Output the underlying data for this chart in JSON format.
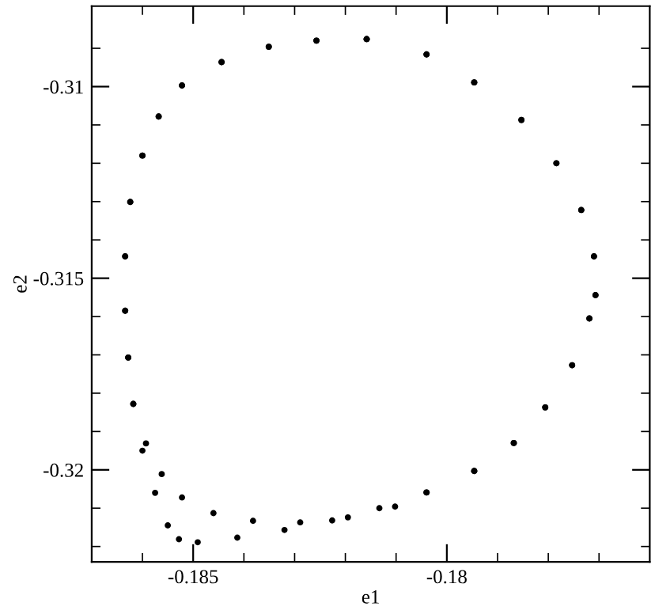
{
  "chart_data": {
    "type": "scatter",
    "xlabel": "e1",
    "ylabel": "e2",
    "xlim": [
      -0.187,
      -0.176
    ],
    "ylim": [
      -0.3224,
      -0.3079
    ],
    "xticks": [
      {
        "value": -0.186,
        "label": null
      },
      -0.185,
      {
        "value": -0.184,
        "label": null
      },
      {
        "value": -0.183,
        "label": null
      },
      {
        "value": -0.182,
        "label": null
      },
      {
        "value": -0.181,
        "label": null
      },
      -0.18,
      {
        "value": -0.179,
        "label": null
      },
      {
        "value": -0.178,
        "label": null
      },
      {
        "value": -0.177,
        "label": null
      }
    ],
    "yticks": [
      {
        "value": -0.322,
        "label": null
      },
      {
        "value": -0.321,
        "label": null
      },
      -0.32,
      {
        "value": -0.319,
        "label": null
      },
      {
        "value": -0.318,
        "label": null
      },
      {
        "value": -0.317,
        "label": null
      },
      {
        "value": -0.316,
        "label": null
      },
      -0.315,
      {
        "value": -0.314,
        "label": null
      },
      {
        "value": -0.313,
        "label": null
      },
      {
        "value": -0.312,
        "label": null
      },
      {
        "value": -0.311,
        "label": null
      },
      -0.31,
      {
        "value": -0.309,
        "label": null
      }
    ],
    "grid": false,
    "legend": false,
    "marker": "circle",
    "series": [
      {
        "color": "#000000",
        "x": [
          -0.18158,
          -0.18257,
          -0.18351,
          -0.18444,
          -0.18522,
          -0.18568,
          -0.186,
          -0.18624,
          -0.18634,
          -0.18634,
          -0.18628,
          -0.18618,
          -0.186,
          -0.18575,
          -0.1855,
          -0.18528,
          -0.18491,
          -0.18413,
          -0.1832,
          -0.18226,
          -0.18133,
          -0.1804,
          -0.17946,
          -0.17868,
          -0.17806,
          -0.17753,
          -0.17719,
          -0.17707,
          -0.1771,
          -0.17735,
          -0.17784,
          -0.17853,
          -0.17946,
          -0.1804,
          -0.18158,
          -0.18257,
          -0.18351,
          -0.18444,
          -0.18522,
          -0.18568,
          -0.186,
          -0.18624,
          -0.18634,
          -0.18634,
          -0.18628,
          -0.18618,
          -0.18593,
          -0.18562,
          -0.18522,
          -0.1846,
          -0.18382,
          -0.18289,
          -0.18195,
          -0.18102,
          -0.1804,
          -0.17946,
          -0.17868,
          -0.17806,
          -0.17753,
          -0.17719,
          -0.17707,
          -0.1771,
          -0.17735,
          -0.17784,
          -0.17853,
          -0.17946,
          -0.1804,
          -0.18158
        ],
        "values": [
          -0.30876,
          -0.3088,
          -0.30896,
          -0.30936,
          -0.30997,
          -0.31078,
          -0.3118,
          -0.31301,
          -0.31443,
          -0.31585,
          -0.31707,
          -0.31828,
          -0.3195,
          -0.3206,
          -0.32145,
          -0.32181,
          -0.32189,
          -0.32177,
          -0.32157,
          -0.32132,
          -0.321,
          -0.32059,
          -0.32003,
          -0.3193,
          -0.31837,
          -0.31727,
          -0.31605,
          -0.31544,
          -0.31443,
          -0.31322,
          -0.312,
          -0.31087,
          -0.30989,
          -0.30916,
          -0.30876,
          -0.3088,
          -0.30896,
          -0.30936,
          -0.30997,
          -0.31078,
          -0.3118,
          -0.31301,
          -0.31443,
          -0.31585,
          -0.31707,
          -0.31828,
          -0.31931,
          -0.32011,
          -0.32072,
          -0.32113,
          -0.32133,
          -0.32137,
          -0.32124,
          -0.32096,
          -0.32059,
          -0.32003,
          -0.3193,
          -0.31837,
          -0.31727,
          -0.31605,
          -0.31544,
          -0.31443,
          -0.31322,
          -0.312,
          -0.31087,
          -0.30989,
          -0.30916,
          -0.30876
        ]
      }
    ]
  }
}
